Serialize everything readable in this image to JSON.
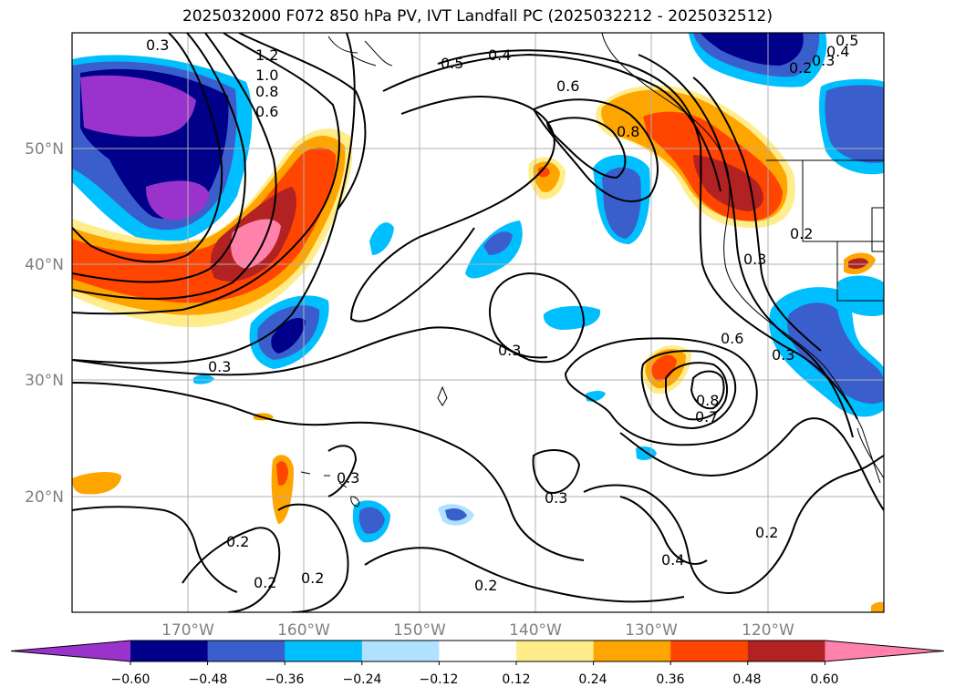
{
  "title": "2025032000 F072 850 hPa PV, IVT Landfall PC (2025032212 - 2025032512)",
  "lat_labels": [
    "50°N",
    "40°N",
    "30°N",
    "20°N"
  ],
  "lon_labels": [
    "170°W",
    "160°W",
    "150°W",
    "140°W",
    "130°W",
    "120°W"
  ],
  "colorbar": {
    "ticks": [
      "−0.60",
      "−0.48",
      "−0.36",
      "−0.24",
      "−0.12",
      "0.12",
      "0.24",
      "0.36",
      "0.48",
      "0.60"
    ],
    "colors": [
      "#9933cc",
      "#00008b",
      "#3a5fcd",
      "#00bfff",
      "#b0e2ff",
      "#ffffff",
      "#ffec8b",
      "#ffa500",
      "#ff4500",
      "#b22222",
      "#ff82ab"
    ]
  },
  "contour_labels": [
    "1.2",
    "1.0",
    "0.8",
    "0.6",
    "0.3",
    "0.5",
    "0.4",
    "0.6",
    "0.8",
    "0.5",
    "0.4",
    "0.2",
    "0.3",
    "0.3",
    "0.3",
    "0.3",
    "0.6",
    "0.8",
    "0.7",
    "0.3",
    "0.3",
    "0.2",
    "0.2",
    "0.2",
    "0.3",
    "0.2",
    "0.4",
    "0.2",
    "0.2",
    "0.3"
  ],
  "chart_data": {
    "type": "heatmap",
    "title": "2025032000 F072 850 hPa PV, IVT Landfall PC (2025032212 - 2025032512)",
    "x_range": [
      -180,
      -110
    ],
    "y_range": [
      10,
      60
    ],
    "colorbar_levels": [
      -0.6,
      -0.48,
      -0.36,
      -0.24,
      -0.12,
      0.12,
      0.24,
      0.36,
      0.48,
      0.6
    ],
    "contour_levels": [
      0.2,
      0.3,
      0.4,
      0.5,
      0.6,
      0.7,
      0.8,
      1.0,
      1.2
    ],
    "grid": true
  }
}
